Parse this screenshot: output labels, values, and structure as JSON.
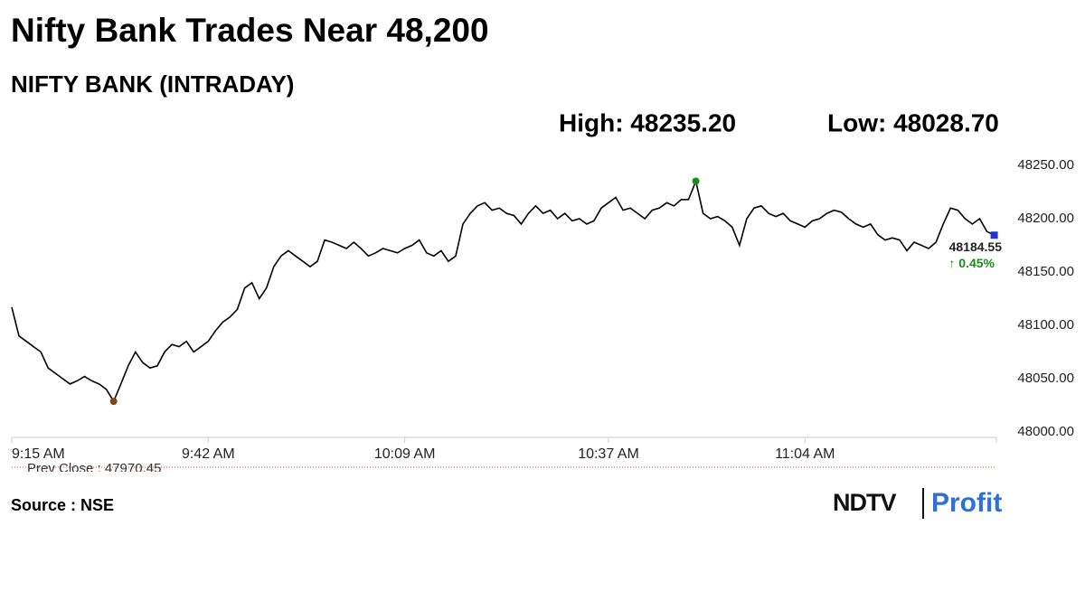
{
  "chart_data": {
    "type": "line",
    "title": "Nifty Bank Trades Near 48,200",
    "subtitle": "NIFTY BANK (INTRADAY)",
    "high_label": "High: 48235.20",
    "low_label": "Low: 48028.70",
    "change_label": "↑ 0.45%",
    "prev_close_label": "Prev Close : 47970.45",
    "source": "Source : NSE",
    "logo": {
      "brand": "NDTV",
      "product": "Profit"
    },
    "categories": [
      "9:15 AM",
      null,
      null,
      null,
      null,
      null,
      null,
      null,
      null,
      null,
      null,
      null,
      null,
      null,
      null,
      null,
      null,
      null,
      null,
      null,
      null,
      null,
      null,
      null,
      null,
      null,
      null,
      "9:42 AM",
      null,
      null,
      null,
      null,
      null,
      null,
      null,
      null,
      null,
      null,
      null,
      null,
      null,
      null,
      null,
      null,
      null,
      null,
      null,
      null,
      null,
      null,
      null,
      null,
      null,
      null,
      "10:09 AM",
      null,
      null,
      null,
      null,
      null,
      null,
      null,
      null,
      null,
      null,
      null,
      null,
      null,
      null,
      null,
      null,
      null,
      null,
      null,
      null,
      null,
      null,
      null,
      null,
      null,
      null,
      null,
      "10:37 AM",
      null,
      null,
      null,
      null,
      null,
      null,
      null,
      null,
      null,
      null,
      null,
      null,
      null,
      null,
      null,
      null,
      null,
      null,
      null,
      null,
      null,
      null,
      null,
      null,
      null,
      null,
      "11:04 AM",
      null,
      null,
      null,
      null,
      null,
      null,
      null,
      null,
      null,
      null,
      null,
      null,
      null,
      null,
      null,
      null,
      null,
      null,
      null,
      null,
      null,
      null,
      null,
      null,
      null,
      null
    ],
    "series": [
      {
        "name": "NIFTY BANK",
        "color": "#000000",
        "values": [
          48117,
          48090,
          48085,
          48080,
          48075,
          48060,
          48055,
          48050,
          48045,
          48048,
          48052,
          48048,
          48045,
          48040,
          48028.7,
          48045,
          48062,
          48075,
          48065,
          48060,
          48062,
          48075,
          48082,
          48080,
          48085,
          48075,
          48080,
          48085,
          48095,
          48103,
          48108,
          48115,
          48135,
          48140,
          48125,
          48135,
          48155,
          48165,
          48170,
          48165,
          48160,
          48155,
          48160,
          48180,
          48178,
          48175,
          48172,
          48178,
          48172,
          48165,
          48168,
          48172,
          48170,
          48168,
          48172,
          48175,
          48180,
          48168,
          48165,
          48170,
          48160,
          48165,
          48195,
          48205,
          48212,
          48215,
          48208,
          48210,
          48205,
          48203,
          48195,
          48205,
          48212,
          48205,
          48208,
          48200,
          48205,
          48198,
          48200,
          48195,
          48198,
          48210,
          48215,
          48220,
          48208,
          48210,
          48205,
          48200,
          48208,
          48210,
          48215,
          48212,
          48218,
          48218,
          48235.2,
          48205,
          48200,
          48202,
          48198,
          48192,
          48175,
          48200,
          48210,
          48212,
          48205,
          48202,
          48205,
          48198,
          48195,
          48192,
          48198,
          48200,
          48205,
          48208,
          48206,
          48200,
          48195,
          48192,
          48195,
          48185,
          48180,
          48182,
          48180,
          48170,
          48178,
          48175,
          48172,
          48178,
          48195,
          48210,
          48208,
          48200,
          48195,
          48200,
          48188,
          48184.55
        ]
      }
    ],
    "ylim": [
      48000,
      48250
    ],
    "yticks": [
      {
        "value": 48000,
        "label": "48000.00"
      },
      {
        "value": 48050,
        "label": "48050.00"
      },
      {
        "value": 48100,
        "label": "48100.00"
      },
      {
        "value": 48150,
        "label": "48150.00"
      },
      {
        "value": 48200,
        "label": "48200.00"
      },
      {
        "value": 48250,
        "label": "48250.00"
      }
    ],
    "high_color": "#1a8a1a",
    "low_color": "#7a4a1a",
    "last_color": "#2233cc"
  }
}
